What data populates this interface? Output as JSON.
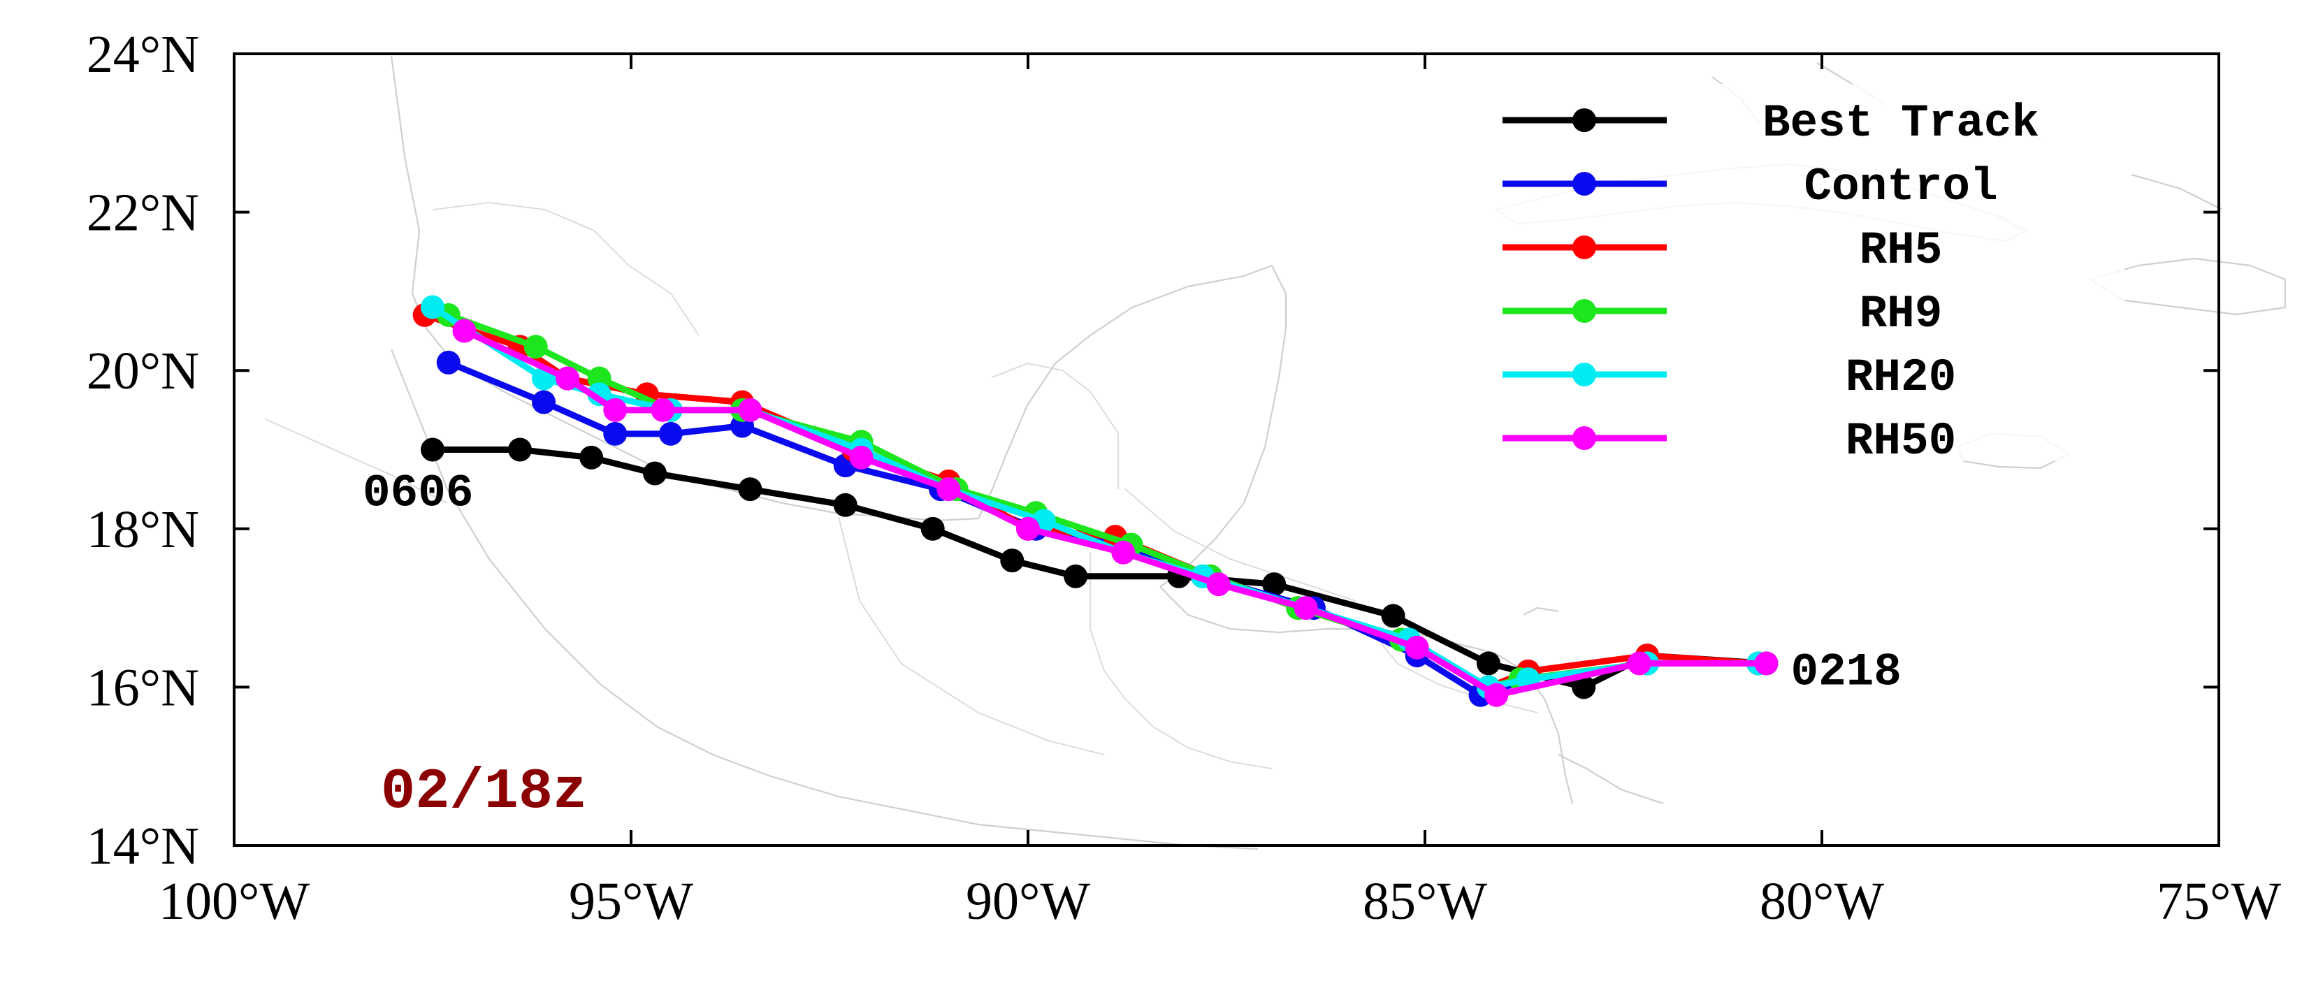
{
  "chart_data": {
    "type": "line",
    "map_type": "hurricane-track",
    "xlim": [
      -100,
      -75
    ],
    "ylim": [
      14,
      24
    ],
    "x_ticks": [
      -100,
      -95,
      -90,
      -85,
      -80,
      -75
    ],
    "x_tick_labels": [
      "100°W",
      "95°W",
      "90°W",
      "85°W",
      "80°W",
      "75°W"
    ],
    "y_ticks": [
      14,
      16,
      18,
      20,
      22,
      24
    ],
    "y_tick_labels": [
      "14°N",
      "16°N",
      "18°N",
      "20°N",
      "22°N",
      "24°N"
    ],
    "title": "02/18z",
    "legend_position": "top-right",
    "series": [
      {
        "name": "Best Track",
        "color": "#000000",
        "lon": [
          -80.7,
          -82.2,
          -83.0,
          -84.2,
          -85.4,
          -86.9,
          -88.1,
          -89.4,
          -90.2,
          -91.2,
          -92.3,
          -93.5,
          -94.7,
          -95.5,
          -96.4,
          -97.5
        ],
        "lat": [
          16.3,
          16.4,
          16.0,
          16.3,
          16.9,
          17.3,
          17.4,
          17.4,
          17.6,
          18.0,
          18.3,
          18.5,
          18.7,
          18.9,
          19.0,
          19.0
        ]
      },
      {
        "name": "Control",
        "color": "#0a0aee",
        "lon": [
          -80.8,
          -82.2,
          -83.7,
          -84.3,
          -85.1,
          -86.4,
          -87.8,
          -88.8,
          -89.9,
          -91.1,
          -92.3,
          -93.6,
          -94.5,
          -95.2,
          -96.1,
          -97.3
        ],
        "lat": [
          16.3,
          16.3,
          16.1,
          15.9,
          16.4,
          17.0,
          17.4,
          17.8,
          18.0,
          18.5,
          18.8,
          19.3,
          19.2,
          19.2,
          19.6,
          20.1
        ]
      },
      {
        "name": "RH5",
        "color": "#ff0000",
        "lon": [
          -80.8,
          -82.2,
          -83.7,
          -84.2,
          -85.3,
          -86.6,
          -87.7,
          -88.9,
          -90.0,
          -91.0,
          -92.2,
          -93.6,
          -94.8,
          -95.8,
          -96.4,
          -97.6
        ],
        "lat": [
          16.3,
          16.4,
          16.2,
          16.0,
          16.6,
          17.0,
          17.4,
          17.9,
          18.0,
          18.6,
          19.0,
          19.6,
          19.7,
          19.9,
          20.3,
          20.7
        ]
      },
      {
        "name": "RH9",
        "color": "#1ee61e",
        "lon": [
          -80.8,
          -82.2,
          -83.8,
          -84.2,
          -85.3,
          -86.6,
          -87.7,
          -88.7,
          -89.9,
          -90.9,
          -92.1,
          -93.6,
          -94.5,
          -95.4,
          -96.2,
          -97.3
        ],
        "lat": [
          16.3,
          16.3,
          16.1,
          16.0,
          16.6,
          17.0,
          17.4,
          17.8,
          18.2,
          18.5,
          19.1,
          19.5,
          19.5,
          19.9,
          20.3,
          20.7
        ]
      },
      {
        "name": "RH20",
        "color": "#00ecf2",
        "lon": [
          -80.8,
          -82.2,
          -83.7,
          -84.2,
          -85.2,
          -86.5,
          -87.8,
          -88.8,
          -89.8,
          -91.0,
          -92.1,
          -93.5,
          -94.5,
          -95.4,
          -96.1,
          -97.5
        ],
        "lat": [
          16.3,
          16.3,
          16.1,
          16.0,
          16.6,
          17.0,
          17.4,
          17.7,
          18.1,
          18.5,
          19.0,
          19.5,
          19.5,
          19.7,
          19.9,
          20.8
        ]
      },
      {
        "name": "RH50",
        "color": "#ff00ff",
        "lon": [
          -80.7,
          -82.3,
          -84.1,
          -85.1,
          -86.5,
          -87.6,
          -88.8,
          -90.0,
          -91.0,
          -92.1,
          -93.5,
          -94.6,
          -95.2,
          -95.8,
          -97.1
        ],
        "lat": [
          16.3,
          16.3,
          15.9,
          16.5,
          17.0,
          17.3,
          17.7,
          18.0,
          18.5,
          18.9,
          19.5,
          19.5,
          19.5,
          19.9,
          20.5
        ]
      }
    ],
    "annotations": [
      {
        "text": "0606",
        "lon": -97.5,
        "lat": 19.0
      },
      {
        "text": "0218",
        "lon": -80.7,
        "lat": 16.3
      }
    ]
  }
}
